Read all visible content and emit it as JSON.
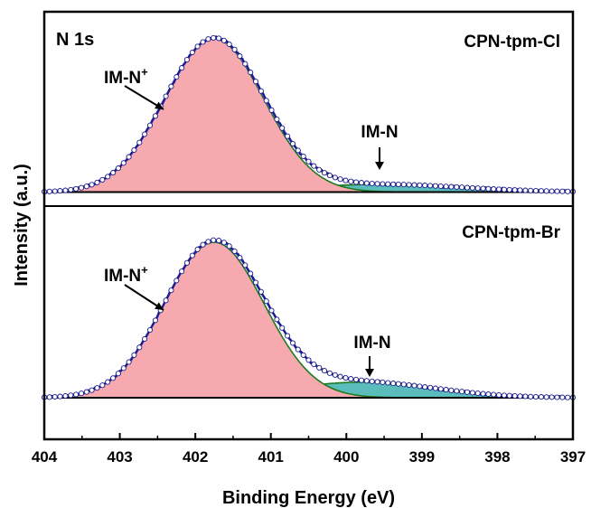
{
  "chart_data": {
    "type": "line",
    "xlabel": "Binding Energy (eV)",
    "ylabel": "Intensity (a.u.)",
    "xlim": [
      404,
      397
    ],
    "x_reversed": true,
    "x_ticks": [
      404,
      403,
      402,
      401,
      400,
      399,
      398,
      397
    ],
    "grid": false,
    "corner_label": "N 1s",
    "panels": [
      {
        "sample": "CPN-tpm-Cl",
        "peaks": [
          {
            "label": "IM-N⁺",
            "center": 401.75,
            "fwhm": 1.55,
            "height": 1.0,
            "fill": "#f7a9b0"
          },
          {
            "label": "IM-N",
            "center": 399.55,
            "fwhm": 2.6,
            "height": 0.05,
            "fill": "#5bbcbc"
          }
        ],
        "peak_labels": {
          "im_n_plus": "IM-N",
          "plus_sup": "+",
          "im_n": "IM-N"
        }
      },
      {
        "sample": "CPN-tpm-Br",
        "peaks": [
          {
            "label": "IM-N⁺",
            "center": 401.75,
            "fwhm": 1.55,
            "height": 1.0,
            "fill": "#f7a9b0"
          },
          {
            "label": "IM-N",
            "center": 399.8,
            "fwhm": 2.3,
            "height": 0.1,
            "fill": "#5bbcbc"
          }
        ],
        "peak_labels": {
          "im_n_plus": "IM-N",
          "plus_sup": "+",
          "im_n": "IM-N"
        }
      }
    ],
    "colors": {
      "raw_data": "#1a1a8c",
      "fit_envelope": "#5a5ad6",
      "baseline": "#000000",
      "component_edge": "#1e7a1e",
      "markers_fill": "#ffffff"
    }
  }
}
